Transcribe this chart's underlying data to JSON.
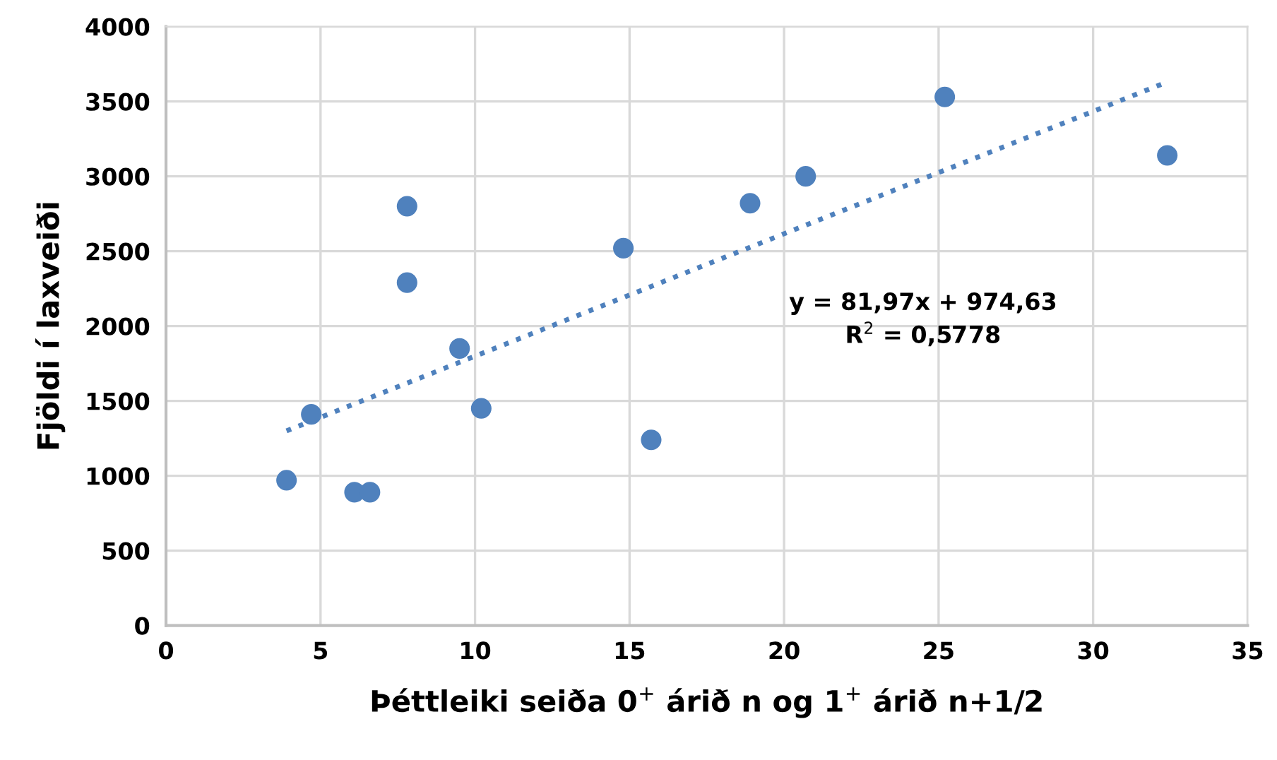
{
  "chart_data": {
    "type": "scatter",
    "xlabel": "Þéttleiki seiða 0$^{+}$ árið n og 1$^{+}$ árið n+1/2",
    "ylabel": "Fjöldi í laxveiði",
    "series": [
      {
        "color": "#4f81bd",
        "marker": "circle",
        "x": [
          3.9,
          4.7,
          6.1,
          6.6,
          7.8,
          7.8,
          9.5,
          10.2,
          14.8,
          15.7,
          18.9,
          20.7,
          25.2,
          32.4
        ],
        "values": [
          970,
          1410,
          890,
          890,
          2800,
          2290,
          1850,
          1450,
          2520,
          1240,
          2820,
          3000,
          3530,
          3140
        ]
      },
      {
        "type": "line",
        "color": "#4f81bd",
        "marker": "none",
        "line_style": "dotted",
        "x": [
          3.9,
          32.4
        ],
        "values": [
          1300,
          3630
        ]
      }
    ],
    "annotations": [
      "y = 81,97x + 974,63\nR$^{2}$ = 0,5778"
    ],
    "xlim": [
      0,
      35
    ],
    "xticks": [
      0,
      5,
      10,
      15,
      20,
      25,
      30,
      35
    ],
    "ylim": [
      0,
      4000
    ],
    "yticks": [
      0,
      500,
      1000,
      1500,
      2000,
      2500,
      3000,
      3500,
      4000
    ],
    "grid": true,
    "legend": false
  }
}
